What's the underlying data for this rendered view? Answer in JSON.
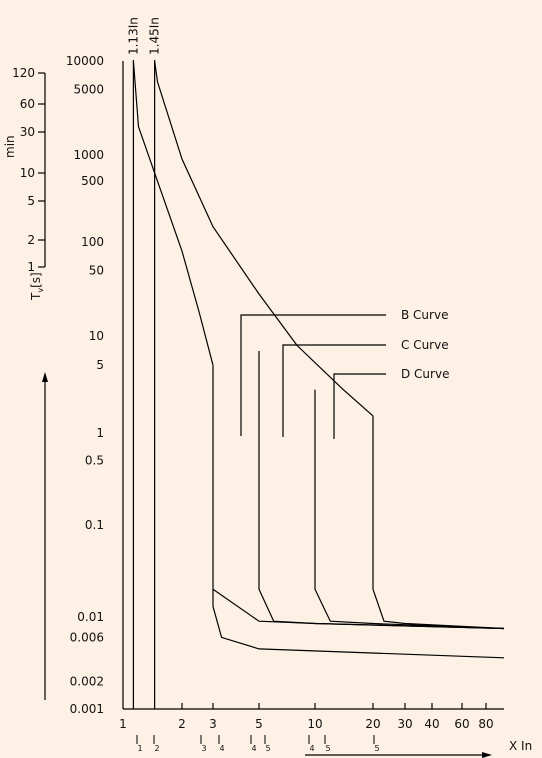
{
  "colors": {
    "background": "#fdf0e4",
    "ink": "#000000"
  },
  "chart_data": {
    "type": "line",
    "title": "",
    "xlabel": "X In",
    "ylabel": "Tv[s]",
    "y_unit_label": "[s]",
    "minutes_axis": {
      "label": "min",
      "ticks": [
        "120",
        "60",
        "30",
        "10",
        "5",
        "2",
        "1"
      ]
    },
    "x_scale": "log",
    "y_scale": "log",
    "xlim": [
      1,
      100
    ],
    "ylim": [
      0.001,
      10000
    ],
    "x_tick_labels": [
      "1",
      "2",
      "3",
      "5",
      "10",
      "20",
      "30",
      "40",
      "60",
      "80"
    ],
    "y_tick_labels": [
      "10000",
      "5000",
      "1000",
      "500",
      "100",
      "50",
      "10",
      "5",
      "1",
      "0.5",
      "0.1",
      "0.01",
      "0.006",
      "0.002",
      "0.001"
    ],
    "marker_lines": [
      {
        "label": "1.13In",
        "x": 1.13
      },
      {
        "label": "1.45In",
        "x": 1.45
      }
    ],
    "sub_scale": [
      "1",
      "2",
      "3",
      "4",
      "4",
      "5",
      "4",
      "5",
      "5"
    ],
    "series": [
      {
        "name": "B Curve",
        "ranges": [
          "3",
          "5"
        ]
      },
      {
        "name": "C Curve",
        "ranges": [
          "5",
          "10"
        ]
      },
      {
        "name": "D Curve",
        "ranges": [
          "10",
          "20"
        ]
      }
    ],
    "thermal_curves": [
      {
        "points": [
          [
            1.13,
            10000
          ],
          [
            1.2,
            2000
          ],
          [
            1.5,
            500
          ],
          [
            2,
            80
          ],
          [
            2.5,
            18
          ],
          [
            3,
            5
          ]
        ]
      },
      {
        "points": [
          [
            1.45,
            10000
          ],
          [
            1.5,
            6000
          ],
          [
            2,
            900
          ],
          [
            3,
            150
          ],
          [
            5,
            28
          ],
          [
            8,
            8
          ],
          [
            14,
            2.8
          ],
          [
            20,
            1.5
          ]
        ]
      }
    ],
    "magnetic_curves": [
      {
        "points": [
          [
            3,
            5
          ],
          [
            3,
            0.015
          ],
          [
            3,
            0.013
          ],
          [
            3.3,
            0.006
          ],
          [
            5,
            0.0045
          ],
          [
            100,
            0.0036
          ]
        ]
      },
      {
        "points": [
          [
            3,
            0.02
          ],
          [
            5,
            0.009
          ],
          [
            10,
            0.0085
          ],
          [
            100,
            0.0075
          ]
        ]
      },
      {
        "points": [
          [
            5,
            7
          ],
          [
            5,
            0.02
          ],
          [
            6,
            0.009
          ],
          [
            10,
            0.0085
          ],
          [
            100,
            0.0075
          ]
        ]
      },
      {
        "points": [
          [
            10,
            2.8
          ],
          [
            10,
            0.02
          ],
          [
            12,
            0.009
          ],
          [
            20,
            0.0085
          ],
          [
            100,
            0.0075
          ]
        ]
      },
      {
        "points": [
          [
            20,
            1.5
          ],
          [
            20,
            0.02
          ],
          [
            23,
            0.009
          ],
          [
            30,
            0.0085
          ],
          [
            100,
            0.0075
          ]
        ]
      }
    ]
  }
}
